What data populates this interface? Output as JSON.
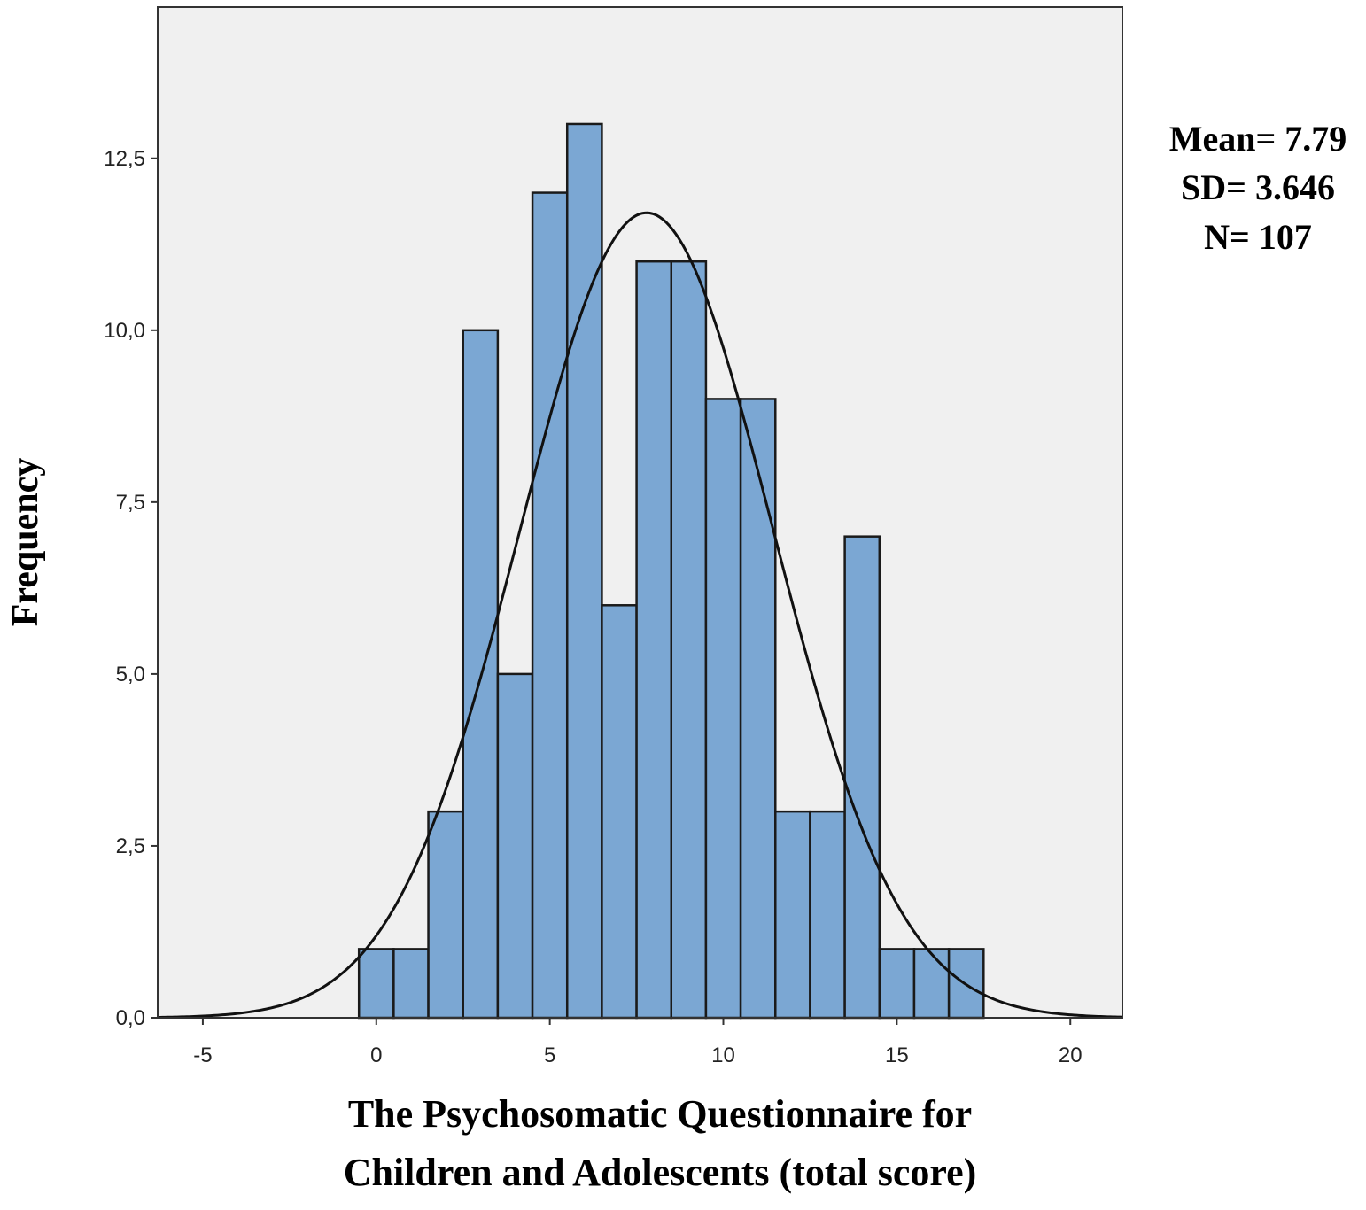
{
  "chart_data": {
    "type": "bar",
    "subtype": "histogram",
    "bin_width": 1,
    "bins": [
      {
        "x": 0,
        "count": 1
      },
      {
        "x": 1,
        "count": 1
      },
      {
        "x": 2,
        "count": 3
      },
      {
        "x": 3,
        "count": 10
      },
      {
        "x": 4,
        "count": 5
      },
      {
        "x": 5,
        "count": 12
      },
      {
        "x": 6,
        "count": 13
      },
      {
        "x": 7,
        "count": 6
      },
      {
        "x": 8,
        "count": 11
      },
      {
        "x": 9,
        "count": 11
      },
      {
        "x": 10,
        "count": 9
      },
      {
        "x": 11,
        "count": 9
      },
      {
        "x": 12,
        "count": 3
      },
      {
        "x": 13,
        "count": 3
      },
      {
        "x": 14,
        "count": 7
      },
      {
        "x": 15,
        "count": 1
      },
      {
        "x": 16,
        "count": 1
      },
      {
        "x": 17,
        "count": 1
      }
    ],
    "normal_curve": {
      "mean": 7.79,
      "sd": 3.646,
      "n": 107
    },
    "xlim": [
      -6.3,
      21.5
    ],
    "ylim": [
      0,
      14.7
    ],
    "x_ticks": [
      "-5",
      "0",
      "5",
      "10",
      "15",
      "20"
    ],
    "x_tick_values": [
      -5,
      0,
      5,
      10,
      15,
      20
    ],
    "y_ticks": [
      "0,0",
      "2,5",
      "5,0",
      "7,5",
      "10,0",
      "12,5"
    ],
    "y_tick_values": [
      0,
      2.5,
      5,
      7.5,
      10,
      12.5
    ],
    "xlabel_line1": "The Psychosomatic Questionnaire for",
    "xlabel_line2": "Children and Adolescents (total score)",
    "ylabel": "Frequency",
    "stats": {
      "mean": "Mean= 7.79",
      "sd": "SD= 3.646",
      "n": "N= 107"
    },
    "grid": false,
    "colors": {
      "bar_fill": "#7ba7d3",
      "bar_stroke": "#1a1a1a",
      "plot_background": "#f0f0f0",
      "curve": "#111111"
    }
  }
}
